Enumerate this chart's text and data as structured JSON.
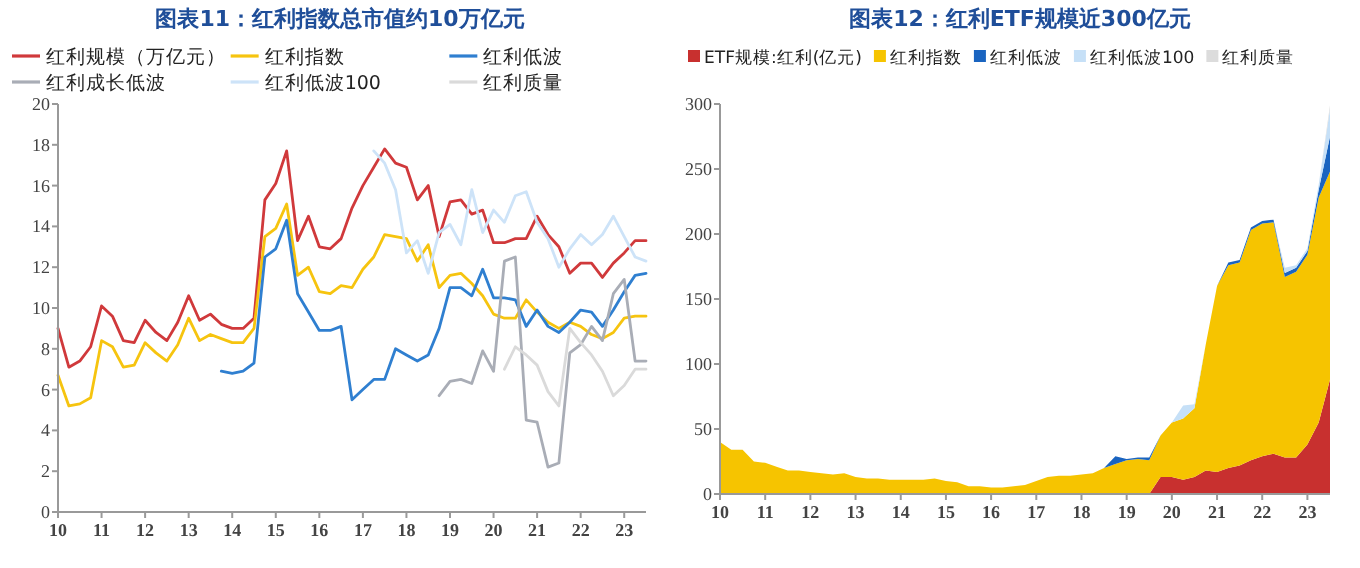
{
  "chart_data": [
    {
      "type": "line",
      "title": "图表11：红利指数总市值约10万亿元",
      "legend": "top",
      "x": [
        2010,
        2010.25,
        2010.5,
        2010.75,
        2011,
        2011.25,
        2011.5,
        2011.75,
        2012,
        2012.25,
        2012.5,
        2012.75,
        2013,
        2013.25,
        2013.5,
        2013.75,
        2014,
        2014.25,
        2014.5,
        2014.75,
        2015,
        2015.25,
        2015.5,
        2015.75,
        2016,
        2016.25,
        2016.5,
        2016.75,
        2017,
        2017.25,
        2017.5,
        2017.75,
        2018,
        2018.25,
        2018.5,
        2018.75,
        2019,
        2019.25,
        2019.5,
        2019.75,
        2020,
        2020.25,
        2020.5,
        2020.75,
        2021,
        2021.25,
        2021.5,
        2021.75,
        2022,
        2022.25,
        2022.5,
        2022.75,
        2023,
        2023.25,
        2023.5
      ],
      "xlim": [
        2010,
        2023.5
      ],
      "xticks": [
        {
          "value": 2010,
          "label": "10"
        },
        {
          "value": 2011,
          "label": "11"
        },
        {
          "value": 2012,
          "label": "12"
        },
        {
          "value": 2013,
          "label": "13"
        },
        {
          "value": 2014,
          "label": "14"
        },
        {
          "value": 2015,
          "label": "15"
        },
        {
          "value": 2016,
          "label": "16"
        },
        {
          "value": 2017,
          "label": "17"
        },
        {
          "value": 2018,
          "label": "18"
        },
        {
          "value": 2019,
          "label": "19"
        },
        {
          "value": 2020,
          "label": "20"
        },
        {
          "value": 2021,
          "label": "21"
        },
        {
          "value": 2022,
          "label": "22"
        },
        {
          "value": 2023,
          "label": "23"
        }
      ],
      "ylim": [
        0,
        20
      ],
      "yticks": [
        0,
        2,
        4,
        6,
        8,
        10,
        12,
        14,
        16,
        18,
        20
      ],
      "series": [
        {
          "name": "红利规模（万亿元）",
          "color": "#d0393b",
          "values": [
            9.0,
            7.1,
            7.4,
            8.1,
            10.1,
            9.6,
            8.4,
            8.3,
            9.4,
            8.8,
            8.4,
            9.3,
            10.6,
            9.4,
            9.7,
            9.2,
            9.0,
            9.0,
            9.5,
            15.3,
            16.1,
            17.7,
            13.3,
            14.5,
            13.0,
            12.9,
            13.4,
            14.9,
            16.0,
            16.9,
            17.8,
            17.1,
            16.9,
            15.3,
            16.0,
            13.5,
            15.2,
            15.3,
            14.6,
            14.8,
            13.2,
            13.2,
            13.4,
            13.4,
            14.5,
            13.6,
            13.0,
            11.7,
            12.2,
            12.2,
            11.5,
            12.2,
            12.7,
            13.3,
            13.3
          ]
        },
        {
          "name": "红利指数",
          "color": "#f6c40f",
          "values": [
            6.7,
            5.2,
            5.3,
            5.6,
            8.4,
            8.1,
            7.1,
            7.2,
            8.3,
            7.8,
            7.4,
            8.2,
            9.5,
            8.4,
            8.7,
            8.5,
            8.3,
            8.3,
            9.0,
            13.5,
            13.9,
            15.1,
            11.6,
            12.0,
            10.8,
            10.7,
            11.1,
            11.0,
            11.9,
            12.5,
            13.6,
            13.5,
            13.4,
            12.3,
            13.1,
            11.0,
            11.6,
            11.7,
            11.2,
            10.6,
            9.7,
            9.5,
            9.5,
            10.4,
            9.8,
            9.3,
            9.0,
            9.3,
            9.1,
            8.7,
            8.5,
            8.8,
            9.5,
            9.6,
            9.6
          ]
        },
        {
          "name": "红利低波",
          "color": "#2f7fd0",
          "values": [
            null,
            null,
            null,
            null,
            null,
            null,
            null,
            null,
            null,
            null,
            null,
            null,
            null,
            null,
            null,
            6.9,
            6.8,
            6.9,
            7.3,
            12.5,
            12.9,
            14.3,
            10.7,
            9.8,
            8.9,
            8.9,
            9.1,
            5.5,
            6.0,
            6.5,
            6.5,
            8.0,
            7.7,
            7.4,
            7.7,
            9.0,
            11.0,
            11.0,
            10.6,
            11.9,
            10.5,
            10.5,
            10.4,
            9.1,
            9.9,
            9.1,
            8.8,
            9.3,
            9.9,
            9.8,
            9.1,
            9.9,
            10.8,
            11.6,
            11.7
          ]
        },
        {
          "name": "红利成长低波",
          "color": "#a9adb6",
          "values": [
            null,
            null,
            null,
            null,
            null,
            null,
            null,
            null,
            null,
            null,
            null,
            null,
            null,
            null,
            null,
            null,
            null,
            null,
            null,
            null,
            null,
            null,
            null,
            null,
            null,
            null,
            null,
            null,
            null,
            null,
            null,
            null,
            null,
            null,
            null,
            5.7,
            6.4,
            6.5,
            6.3,
            7.9,
            6.9,
            12.3,
            12.5,
            4.5,
            4.4,
            2.2,
            2.4,
            7.8,
            8.2,
            9.1,
            8.4,
            10.7,
            11.4,
            7.4,
            7.4
          ]
        },
        {
          "name": "红利低波100",
          "color": "#cde3f8",
          "values": [
            null,
            null,
            null,
            null,
            null,
            null,
            null,
            null,
            null,
            null,
            null,
            null,
            null,
            null,
            null,
            null,
            null,
            null,
            null,
            null,
            null,
            null,
            null,
            null,
            null,
            null,
            null,
            null,
            null,
            17.7,
            17.1,
            15.8,
            12.7,
            13.3,
            11.7,
            13.7,
            14.1,
            13.1,
            15.8,
            13.7,
            14.8,
            14.2,
            15.5,
            15.7,
            14.2,
            13.4,
            12.0,
            12.9,
            13.6,
            13.1,
            13.6,
            14.5,
            13.5,
            12.5,
            12.3
          ]
        },
        {
          "name": "红利质量",
          "color": "#dadada",
          "values": [
            null,
            null,
            null,
            null,
            null,
            null,
            null,
            null,
            null,
            null,
            null,
            null,
            null,
            null,
            null,
            null,
            null,
            null,
            null,
            null,
            null,
            null,
            null,
            null,
            null,
            null,
            null,
            null,
            null,
            null,
            null,
            null,
            null,
            null,
            null,
            null,
            null,
            null,
            null,
            null,
            null,
            7.0,
            8.1,
            7.7,
            7.2,
            5.9,
            5.2,
            9.0,
            8.3,
            7.7,
            6.9,
            5.7,
            6.2,
            7.0,
            7.0
          ]
        }
      ]
    },
    {
      "type": "area",
      "stacked": true,
      "title": "图表12：红利ETF规模近300亿元",
      "legend": "top",
      "x": [
        2010,
        2010.25,
        2010.5,
        2010.75,
        2011,
        2011.25,
        2011.5,
        2011.75,
        2012,
        2012.25,
        2012.5,
        2012.75,
        2013,
        2013.25,
        2013.5,
        2013.75,
        2014,
        2014.25,
        2014.5,
        2014.75,
        2015,
        2015.25,
        2015.5,
        2015.75,
        2016,
        2016.25,
        2016.5,
        2016.75,
        2017,
        2017.25,
        2017.5,
        2017.75,
        2018,
        2018.25,
        2018.5,
        2018.75,
        2019,
        2019.25,
        2019.5,
        2019.75,
        2020,
        2020.25,
        2020.5,
        2020.75,
        2021,
        2021.25,
        2021.5,
        2021.75,
        2022,
        2022.25,
        2022.5,
        2022.75,
        2023,
        2023.25,
        2023.5
      ],
      "xlim": [
        2010,
        2023.5
      ],
      "xticks": [
        {
          "value": 2010,
          "label": "10"
        },
        {
          "value": 2011,
          "label": "11"
        },
        {
          "value": 2012,
          "label": "12"
        },
        {
          "value": 2013,
          "label": "13"
        },
        {
          "value": 2014,
          "label": "14"
        },
        {
          "value": 2015,
          "label": "15"
        },
        {
          "value": 2016,
          "label": "16"
        },
        {
          "value": 2017,
          "label": "17"
        },
        {
          "value": 2018,
          "label": "18"
        },
        {
          "value": 2019,
          "label": "19"
        },
        {
          "value": 2020,
          "label": "20"
        },
        {
          "value": 2021,
          "label": "21"
        },
        {
          "value": 2022,
          "label": "22"
        },
        {
          "value": 2023,
          "label": "23"
        }
      ],
      "ylim": [
        0,
        300
      ],
      "yticks": [
        0,
        50,
        100,
        150,
        200,
        250,
        300
      ],
      "series": [
        {
          "name": "ETF规模:红利(亿元)",
          "color": "#c8302f",
          "values": [
            0,
            0,
            0,
            0,
            0,
            0,
            0,
            0,
            0,
            0,
            0,
            0,
            0,
            0,
            0,
            0,
            0,
            0,
            0,
            0,
            0,
            0,
            0,
            0,
            0,
            0,
            0,
            0,
            0,
            0,
            0,
            0,
            0,
            0,
            0,
            0,
            0,
            0,
            0,
            13,
            13,
            11,
            13,
            18,
            17,
            20,
            22,
            26,
            29,
            31,
            28,
            28,
            38,
            55,
            88
          ]
        },
        {
          "name": "红利指数",
          "color": "#f6c400",
          "values": [
            40,
            34,
            34,
            25,
            24,
            21,
            18,
            18,
            17,
            16,
            15,
            16,
            13,
            12,
            12,
            11,
            11,
            11,
            11,
            12,
            10,
            9,
            6,
            6,
            5,
            5,
            6,
            7,
            10,
            13,
            14,
            14,
            15,
            16,
            20,
            23,
            26,
            27,
            26,
            32,
            42,
            47,
            53,
            97,
            143,
            156,
            156,
            177,
            179,
            178,
            139,
            143,
            146,
            173,
            160
          ]
        },
        {
          "name": "红利低波",
          "color": "#1a64c0",
          "values": [
            0,
            0,
            0,
            0,
            0,
            0,
            0,
            0,
            0,
            0,
            0,
            0,
            0,
            0,
            0,
            0,
            0,
            0,
            0,
            0,
            0,
            0,
            0,
            0,
            0,
            0,
            0,
            0,
            0,
            0,
            0,
            0,
            0,
            0,
            0,
            6,
            1,
            1,
            2,
            0,
            0,
            0,
            0,
            0,
            0,
            2,
            2,
            2,
            2,
            2,
            3,
            3,
            3,
            6,
            27
          ]
        },
        {
          "name": "红利低波100",
          "color": "#c6e0f7",
          "values": [
            0,
            0,
            0,
            0,
            0,
            0,
            0,
            0,
            0,
            0,
            0,
            0,
            0,
            0,
            0,
            0,
            0,
            0,
            0,
            0,
            0,
            0,
            0,
            0,
            0,
            0,
            0,
            0,
            0,
            0,
            0,
            0,
            0,
            0,
            0,
            0,
            0,
            0,
            0,
            0,
            0,
            10,
            3,
            0,
            0,
            0,
            0,
            0,
            0,
            0,
            4,
            2,
            2,
            4,
            21
          ]
        },
        {
          "name": "红利质量",
          "color": "#dcdcdc",
          "values": [
            0,
            0,
            0,
            0,
            0,
            0,
            0,
            0,
            0,
            0,
            0,
            0,
            0,
            0,
            0,
            0,
            0,
            0,
            0,
            0,
            0,
            0,
            0,
            0,
            0,
            0,
            0,
            0,
            0,
            0,
            0,
            0,
            0,
            0,
            0,
            0,
            0,
            0,
            0,
            0,
            0,
            0,
            0,
            0,
            0,
            0,
            0,
            0,
            0,
            0,
            0,
            0,
            0,
            0,
            3
          ]
        }
      ]
    }
  ]
}
